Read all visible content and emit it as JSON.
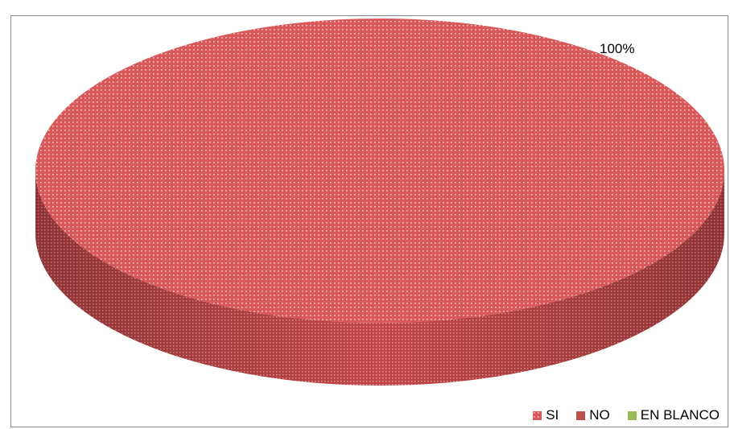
{
  "chart_data": {
    "type": "pie",
    "style": "3d",
    "categories": [
      "SI",
      "NO",
      "EN BLANCO"
    ],
    "values": [
      100,
      0,
      0
    ],
    "data_labels": [
      "100%",
      "",
      ""
    ],
    "legend_position": "bottom-right",
    "colors": {
      "SI": "#d9585a",
      "NO": "#c0504d",
      "EN BLANCO": "#9bbb59",
      "pattern_dot": "#f3c9c9",
      "side_dark": "#b8393b"
    },
    "patterns": {
      "SI": "dotted-grid"
    }
  }
}
